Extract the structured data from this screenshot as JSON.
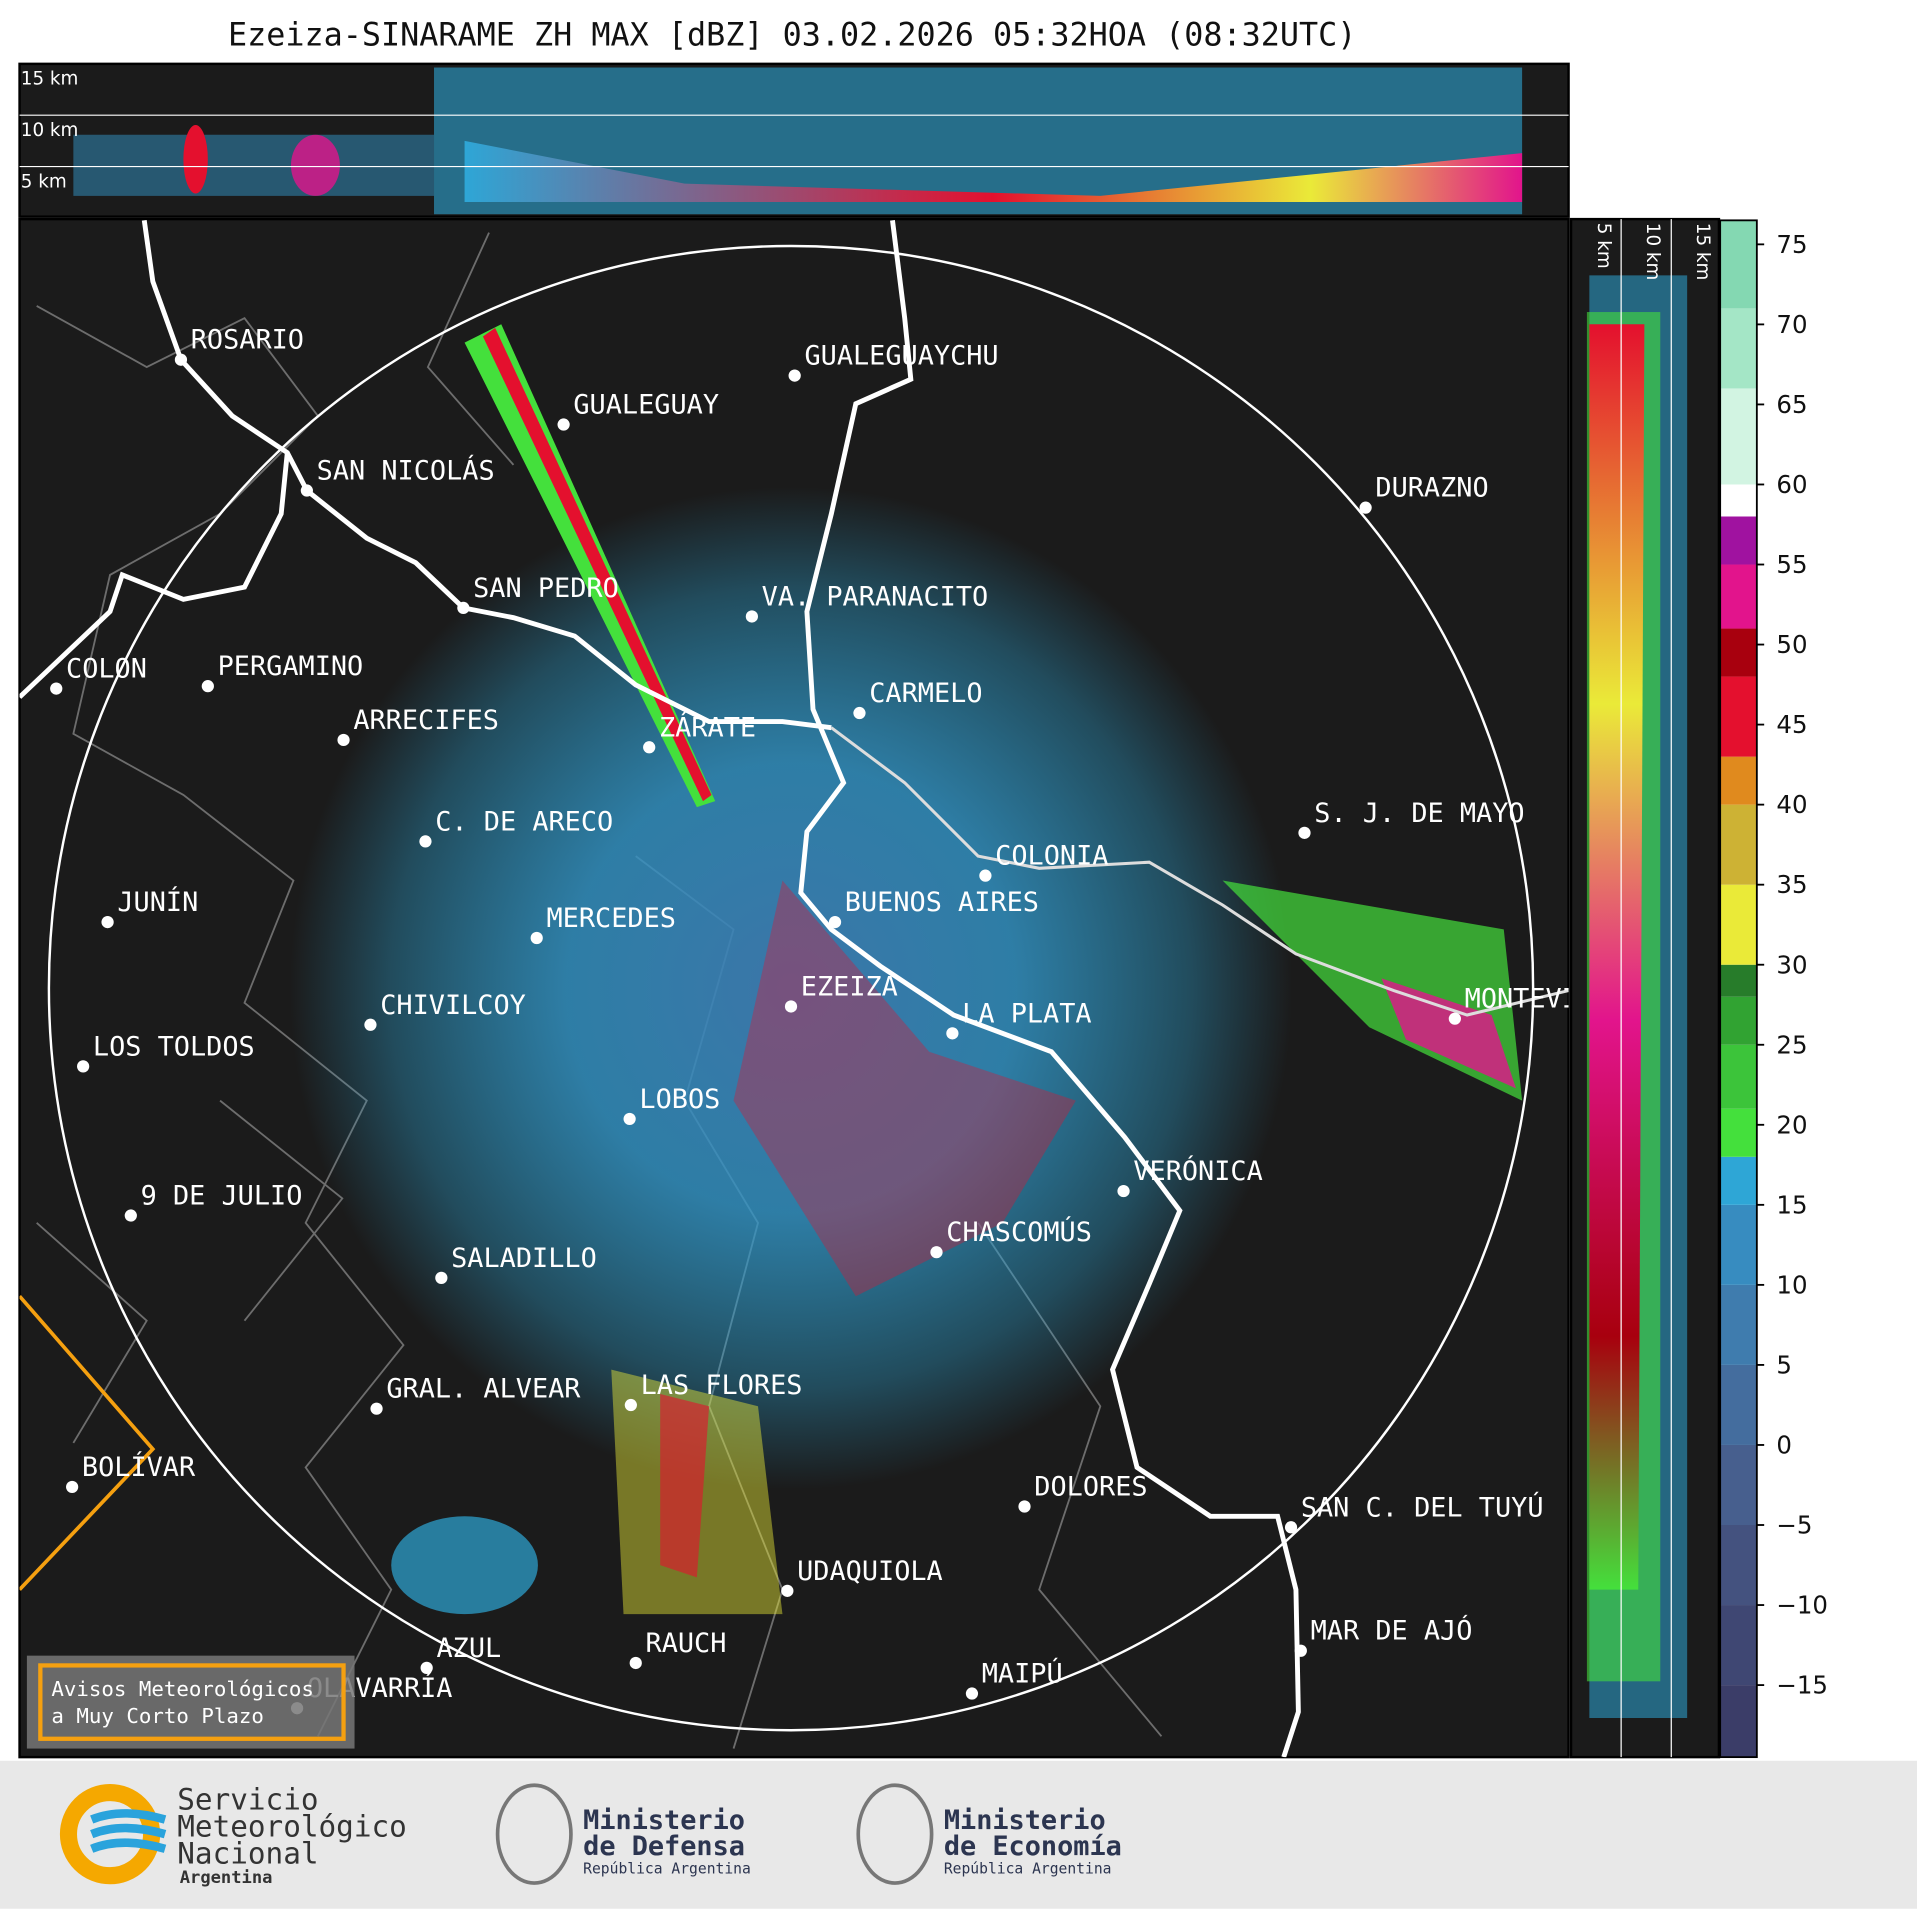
{
  "title": "Ezeiza-SINARAME ZH MAX [dBZ] 03.02.2026 05:32HOA (08:32UTC)",
  "top_panel_heights": [
    "15 km",
    "10 km",
    "5 km"
  ],
  "side_panel_heights": [
    "5 km",
    "10 km",
    "15 km"
  ],
  "cities": [
    "ROSARIO",
    "GUALEGUAYCHU",
    "GUALEGUAY",
    "SAN NICOLÁS",
    "DURAZNO",
    "SAN PEDRO",
    "VA. PARANACITO",
    "COLON",
    "PERGAMINO",
    "CARMELO",
    "ARRECIFES",
    "ZÁRATE",
    "C. DE ARECO",
    "S. J. DE MAYO",
    "COLONIA",
    "JUNÍN",
    "BUENOS AIRES",
    "MERCEDES",
    "EZEIZA",
    "MONTEVIDEO",
    "CHIVILCOY",
    "LA PLATA",
    "LOS TOLDOS",
    "LOBOS",
    "VERÓNICA",
    "9 DE JULIO",
    "CHASCOMÚS",
    "SALADILLO",
    "GRAL. ALVEAR",
    "LAS FLORES",
    "BOLÍVAR",
    "DOLORES",
    "SAN C. DEL TUYÚ",
    "UDAQUIOLA",
    "MAR DE AJÓ",
    "RAUCH",
    "AZUL",
    "OLAVARRÍA",
    "MAIPÚ"
  ],
  "legend_box": [
    "Avisos Meteorológicos",
    "a Muy Corto Plazo"
  ],
  "colorbar": {
    "lim": [
      -19.5,
      76.5
    ],
    "ticks": [
      {
        "value": -15,
        "label": "−15"
      },
      {
        "value": -10,
        "label": "−10"
      },
      {
        "value": -5,
        "label": "−5"
      },
      0,
      5,
      10,
      15,
      20,
      25,
      30,
      35,
      40,
      45,
      50,
      55,
      60,
      65,
      70,
      75
    ],
    "stops": [
      {
        "value": -19.5,
        "color": "#3b3d68"
      },
      {
        "value": -15,
        "color": "#3f4773"
      },
      {
        "value": -10,
        "color": "#44527f"
      },
      {
        "value": -5,
        "color": "#475f8e"
      },
      {
        "value": 0,
        "color": "#446d9e"
      },
      {
        "value": 5,
        "color": "#3f7cae"
      },
      {
        "value": 10,
        "color": "#378cc0"
      },
      {
        "value": 15,
        "color": "#2ea6d6"
      },
      {
        "value": 18,
        "color": "#44e03c"
      },
      {
        "value": 21,
        "color": "#3cc43a"
      },
      {
        "value": 25,
        "color": "#31a332"
      },
      {
        "value": 28,
        "color": "#277c2a"
      },
      {
        "value": 30,
        "color": "#eaea38"
      },
      {
        "value": 35,
        "color": "#cdb234"
      },
      {
        "value": 40,
        "color": "#e08a1e"
      },
      {
        "value": 43,
        "color": "#e4102e"
      },
      {
        "value": 48,
        "color": "#a8000e"
      },
      {
        "value": 51,
        "color": "#e2148c"
      },
      {
        "value": 55,
        "color": "#a012a0"
      },
      {
        "value": 58,
        "color": "#ffffff"
      },
      {
        "value": 60,
        "color": "#d2f4e2"
      },
      {
        "value": 66,
        "color": "#a4e6c6"
      },
      {
        "value": 71,
        "color": "#84d8b2"
      }
    ]
  },
  "logos": {
    "smn": [
      "Servicio",
      "Meteorológico",
      "Nacional",
      "Argentina"
    ],
    "defensa": [
      "Ministerio",
      "de Defensa",
      "República Argentina"
    ],
    "economia": [
      "Ministerio",
      "de Economía",
      "República Argentina"
    ]
  }
}
